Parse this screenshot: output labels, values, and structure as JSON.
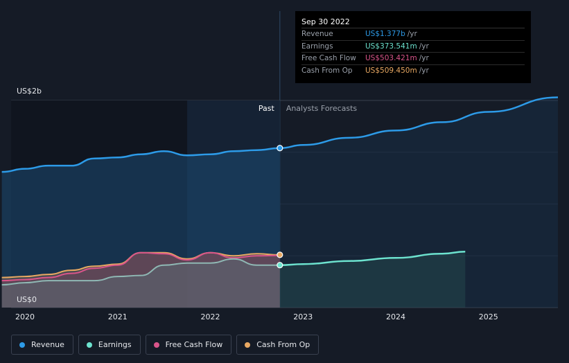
{
  "tooltip": {
    "date": "Sep 30 2022",
    "rows": [
      {
        "label": "Revenue",
        "value": "US$1.377b",
        "unit": "/yr",
        "color": "#2d9be8"
      },
      {
        "label": "Earnings",
        "value": "US$373.541m",
        "unit": "/yr",
        "color": "#6de3cf"
      },
      {
        "label": "Free Cash Flow",
        "value": "US$503.421m",
        "unit": "/yr",
        "color": "#d9558a"
      },
      {
        "label": "Cash From Op",
        "value": "US$509.450m",
        "unit": "/yr",
        "color": "#e8a862"
      }
    ]
  },
  "sections": {
    "past": "Past",
    "forecast": "Analysts Forecasts"
  },
  "legend": [
    {
      "label": "Revenue",
      "color": "#2d9be8"
    },
    {
      "label": "Earnings",
      "color": "#6de3cf"
    },
    {
      "label": "Free Cash Flow",
      "color": "#d9558a"
    },
    {
      "label": "Cash From Op",
      "color": "#e8a862"
    }
  ],
  "chart_data": {
    "type": "line",
    "y_unit": "US$ b",
    "ylim": [
      0,
      2.0
    ],
    "y_tick_labels": [
      {
        "value": 2.0,
        "label": "US$2b"
      },
      {
        "value": 0,
        "label": "US$0"
      }
    ],
    "xlim": [
      2019.85,
      2025.75
    ],
    "x_ticks": [
      2020,
      2021,
      2022,
      2023,
      2024,
      2025
    ],
    "x_tick_labels": [
      "2020",
      "2021",
      "2022",
      "2023",
      "2024",
      "2025"
    ],
    "past_forecast_boundary": 2022.75,
    "highlight_band": [
      2021.75,
      2022.75
    ],
    "grid": true,
    "legend_position": "bottom-left",
    "series": [
      {
        "name": "Revenue",
        "color": "#2d9be8",
        "past": [
          [
            2019.75,
            1.31
          ],
          [
            2020.0,
            1.34
          ],
          [
            2020.25,
            1.37
          ],
          [
            2020.5,
            1.37
          ],
          [
            2020.75,
            1.44
          ],
          [
            2021.0,
            1.45
          ],
          [
            2021.25,
            1.48
          ],
          [
            2021.5,
            1.51
          ],
          [
            2021.75,
            1.47
          ],
          [
            2022.0,
            1.48
          ],
          [
            2022.25,
            1.51
          ],
          [
            2022.5,
            1.52
          ],
          [
            2022.75,
            1.377
          ]
        ],
        "forecast": [
          [
            2022.75,
            1.54
          ],
          [
            2023.0,
            1.57
          ],
          [
            2023.5,
            1.64
          ],
          [
            2024.0,
            1.71
          ],
          [
            2024.5,
            1.79
          ],
          [
            2025.0,
            1.89
          ],
          [
            2025.75,
            2.03
          ]
        ]
      },
      {
        "name": "Earnings",
        "color": "#6de3cf",
        "past": [
          [
            2019.75,
            0.22
          ],
          [
            2020.0,
            0.24
          ],
          [
            2020.25,
            0.26
          ],
          [
            2020.5,
            0.26
          ],
          [
            2020.75,
            0.26
          ],
          [
            2021.0,
            0.3
          ],
          [
            2021.25,
            0.31
          ],
          [
            2021.5,
            0.41
          ],
          [
            2021.75,
            0.43
          ],
          [
            2022.0,
            0.43
          ],
          [
            2022.25,
            0.47
          ],
          [
            2022.5,
            0.41
          ],
          [
            2022.75,
            0.374
          ]
        ],
        "forecast": [
          [
            2022.75,
            0.41
          ],
          [
            2023.0,
            0.42
          ],
          [
            2023.5,
            0.45
          ],
          [
            2024.0,
            0.48
          ],
          [
            2024.5,
            0.52
          ],
          [
            2024.75,
            0.54
          ]
        ]
      },
      {
        "name": "Free Cash Flow",
        "color": "#d9558a",
        "past": [
          [
            2019.75,
            0.26
          ],
          [
            2020.0,
            0.27
          ],
          [
            2020.25,
            0.29
          ],
          [
            2020.5,
            0.33
          ],
          [
            2020.75,
            0.38
          ],
          [
            2021.0,
            0.41
          ],
          [
            2021.25,
            0.53
          ],
          [
            2021.5,
            0.52
          ],
          [
            2021.75,
            0.46
          ],
          [
            2022.0,
            0.53
          ],
          [
            2022.25,
            0.48
          ],
          [
            2022.5,
            0.5
          ],
          [
            2022.75,
            0.503
          ]
        ]
      },
      {
        "name": "Cash From Op",
        "color": "#e8a862",
        "past": [
          [
            2019.75,
            0.29
          ],
          [
            2020.0,
            0.3
          ],
          [
            2020.25,
            0.32
          ],
          [
            2020.5,
            0.36
          ],
          [
            2020.75,
            0.4
          ],
          [
            2021.0,
            0.42
          ],
          [
            2021.25,
            0.53
          ],
          [
            2021.5,
            0.53
          ],
          [
            2021.75,
            0.47
          ],
          [
            2022.0,
            0.53
          ],
          [
            2022.25,
            0.5
          ],
          [
            2022.5,
            0.52
          ],
          [
            2022.75,
            0.509
          ]
        ]
      }
    ]
  }
}
